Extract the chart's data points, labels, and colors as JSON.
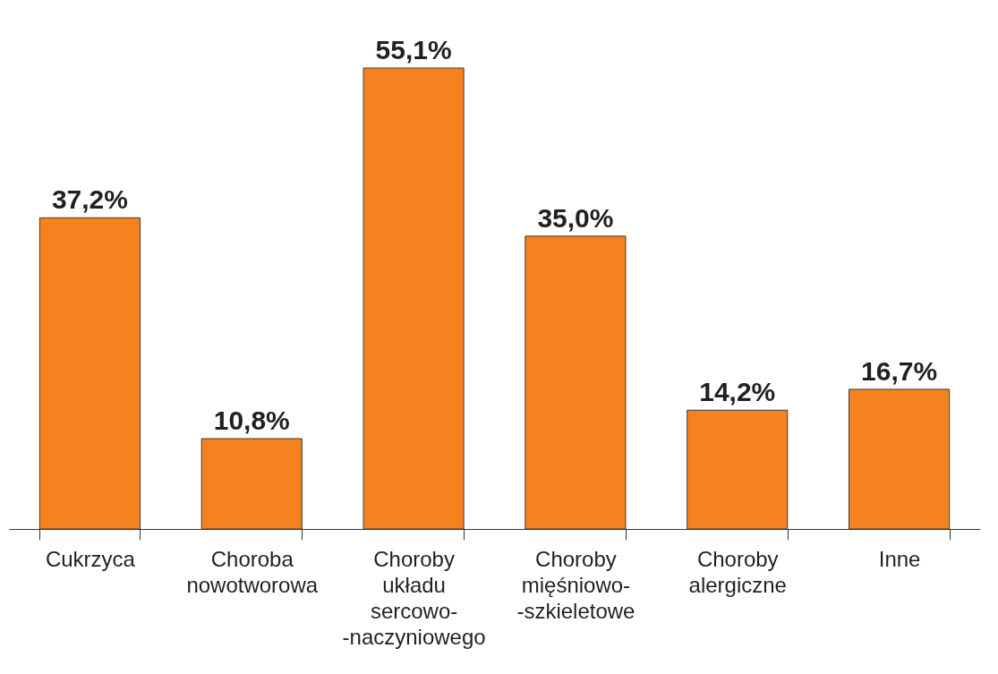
{
  "chart_data": {
    "type": "bar",
    "categories": [
      "Cukrzyca",
      "Choroba nowotworowa",
      "Choroby układu sercowo- -naczyniowego",
      "Choroby mięśniowo- -szkieletowe",
      "Choroby alergiczne",
      "Inne"
    ],
    "values": [
      37.2,
      10.8,
      55.1,
      35.0,
      14.2,
      16.7
    ],
    "value_labels": [
      "37,2%",
      "10,8%",
      "55,1%",
      "35,0%",
      "14,2%",
      "16,7%"
    ],
    "color": "#f5821f",
    "grid": false
  }
}
